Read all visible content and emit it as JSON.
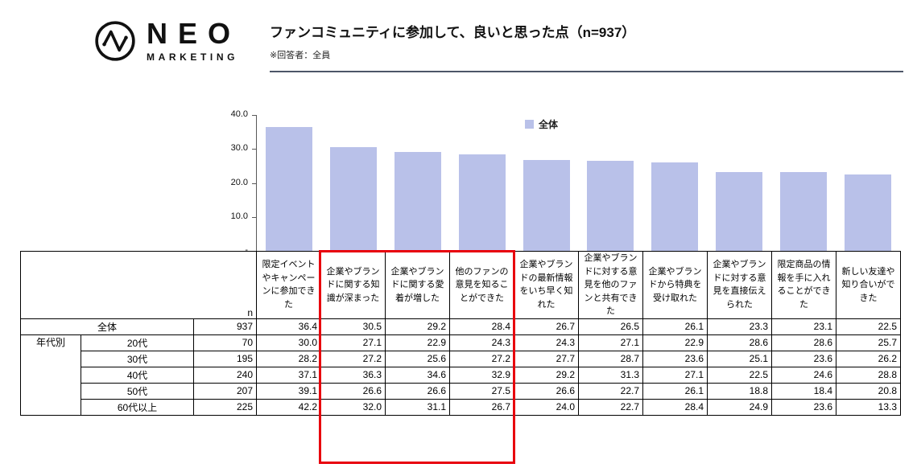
{
  "header": {
    "brand_name": "NEO",
    "brand_sub": "MARKETING",
    "title": "ファンコミュニティに参加して、良いと思った点（n=937）",
    "subtitle": "※回答者：全員"
  },
  "chart_data": {
    "type": "bar",
    "title": "ファンコミュニティに参加して、良いと思った点（n=937）",
    "legend": [
      "全体"
    ],
    "legend_position": "top-center",
    "ylim": [
      0,
      40
    ],
    "yticks": [
      "40.0",
      "30.0",
      "20.0",
      "10.0",
      "-"
    ],
    "grid": false,
    "bar_color": "#b9c1e9",
    "categories": [
      "限定イベントやキャンペーンに参加できた",
      "企業やブランドに関する知識が深まった",
      "企業やブランドに関する愛着が増した",
      "他のファンの意見を知ることができた",
      "企業やブランドの最新情報をいち早く知れた",
      "企業やブランドに対する意見を他のファンと共有できた",
      "企業やブランドから特典を受け取れた",
      "企業やブランドに対する意見を直接伝えられた",
      "限定商品の情報を手に入れることができた",
      "新しい友達や知り合いができた"
    ],
    "series": [
      {
        "name": "全体",
        "values": [
          36.4,
          30.5,
          29.2,
          28.4,
          26.7,
          26.5,
          26.1,
          23.3,
          23.1,
          22.5
        ]
      }
    ],
    "highlighted_category_indexes": [
      1,
      2,
      3
    ],
    "highlight_color": "#e8000d"
  },
  "table": {
    "n_label": "n",
    "group_label": "年代別",
    "rows": [
      {
        "label": "全体",
        "n": "937",
        "values": [
          "36.4",
          "30.5",
          "29.2",
          "28.4",
          "26.7",
          "26.5",
          "26.1",
          "23.3",
          "23.1",
          "22.5"
        ]
      },
      {
        "label": "20代",
        "n": "70",
        "values": [
          "30.0",
          "27.1",
          "22.9",
          "24.3",
          "24.3",
          "27.1",
          "22.9",
          "28.6",
          "28.6",
          "25.7"
        ]
      },
      {
        "label": "30代",
        "n": "195",
        "values": [
          "28.2",
          "27.2",
          "25.6",
          "27.2",
          "27.7",
          "28.7",
          "23.6",
          "25.1",
          "23.6",
          "26.2"
        ]
      },
      {
        "label": "40代",
        "n": "240",
        "values": [
          "37.1",
          "36.3",
          "34.6",
          "32.9",
          "29.2",
          "31.3",
          "27.1",
          "22.5",
          "24.6",
          "28.8"
        ]
      },
      {
        "label": "50代",
        "n": "207",
        "values": [
          "39.1",
          "26.6",
          "26.6",
          "27.5",
          "26.6",
          "22.7",
          "26.1",
          "18.8",
          "18.4",
          "20.8"
        ]
      },
      {
        "label": "60代以上",
        "n": "225",
        "values": [
          "42.2",
          "32.0",
          "31.1",
          "26.7",
          "24.0",
          "22.7",
          "28.4",
          "24.9",
          "23.6",
          "13.3"
        ]
      }
    ]
  }
}
